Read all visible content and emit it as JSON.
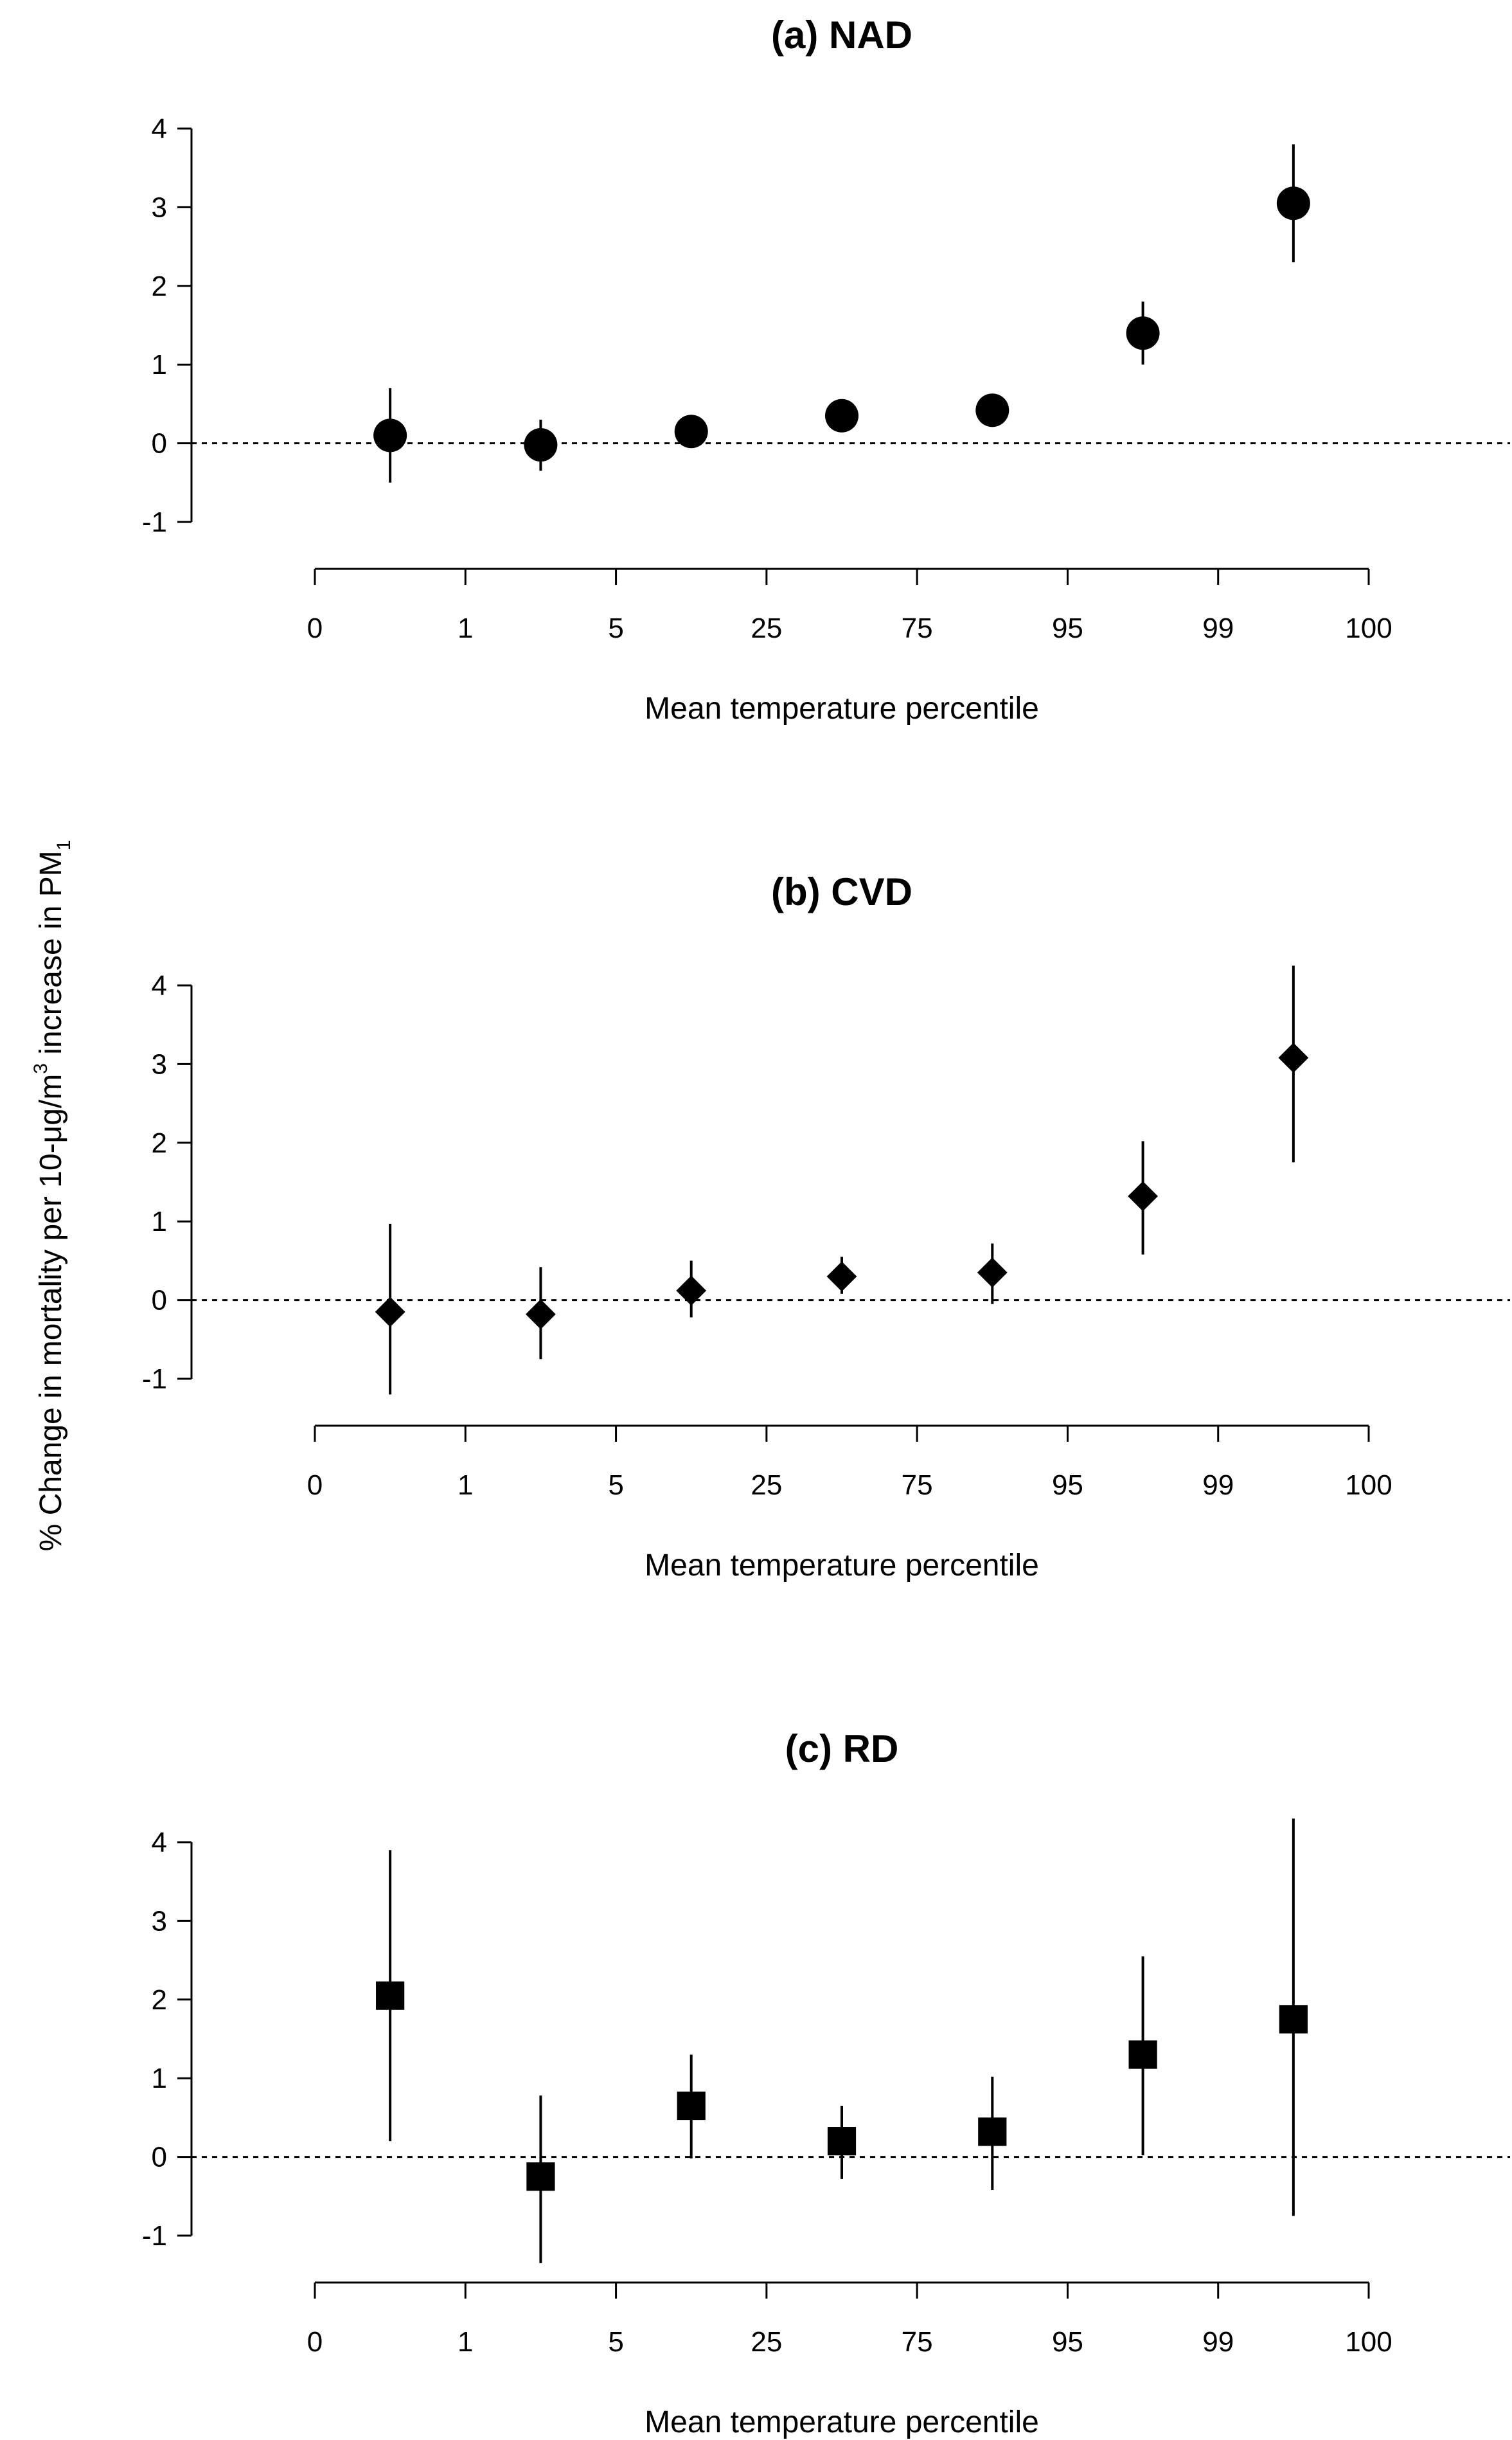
{
  "figure": {
    "y_axis_label_parts": [
      "% Change in mortality per 10-μg/m",
      "3",
      " increase in  PM",
      "1"
    ]
  },
  "chart_data": [
    {
      "type": "scatter",
      "title": "(a) NAD",
      "marker": "circle",
      "xlabel": "Mean temperature percentile",
      "x_ticks": [
        "0",
        "1",
        "5",
        "25",
        "75",
        "95",
        "99",
        "100"
      ],
      "y_ticks": [
        -1,
        0,
        1,
        2,
        3,
        4
      ],
      "ylim": [
        -1,
        4
      ],
      "reference_line": 0,
      "categories": [
        "0-1",
        "1-5",
        "5-25",
        "25-75",
        "75-95",
        "95-99",
        "99-100"
      ],
      "values": [
        0.1,
        -0.02,
        0.15,
        0.35,
        0.42,
        1.4,
        3.05
      ],
      "ci_lower": [
        -0.5,
        -0.35,
        0.0,
        0.2,
        0.25,
        1.0,
        2.3
      ],
      "ci_upper": [
        0.7,
        0.3,
        0.3,
        0.5,
        0.6,
        1.8,
        3.8
      ]
    },
    {
      "type": "scatter",
      "title": "(b) CVD",
      "marker": "diamond",
      "xlabel": "Mean temperature percentile",
      "x_ticks": [
        "0",
        "1",
        "5",
        "25",
        "75",
        "95",
        "99",
        "100"
      ],
      "y_ticks": [
        -1,
        0,
        1,
        2,
        3,
        4
      ],
      "ylim": [
        -1,
        4
      ],
      "reference_line": 0,
      "categories": [
        "0-1",
        "1-5",
        "5-25",
        "25-75",
        "75-95",
        "95-99",
        "99-100"
      ],
      "values": [
        -0.15,
        -0.18,
        0.12,
        0.3,
        0.35,
        1.32,
        3.08
      ],
      "ci_lower": [
        -1.2,
        -0.75,
        -0.22,
        0.08,
        -0.05,
        0.58,
        1.75
      ],
      "ci_upper": [
        0.97,
        0.42,
        0.5,
        0.55,
        0.72,
        2.02,
        4.25
      ]
    },
    {
      "type": "scatter",
      "title": "(c) RD",
      "marker": "square",
      "xlabel": "Mean temperature percentile",
      "x_ticks": [
        "0",
        "1",
        "5",
        "25",
        "75",
        "95",
        "99",
        "100"
      ],
      "y_ticks": [
        -1,
        0,
        1,
        2,
        3,
        4
      ],
      "ylim": [
        -1,
        4
      ],
      "reference_line": 0,
      "categories": [
        "0-1",
        "1-5",
        "5-25",
        "25-75",
        "75-95",
        "95-99",
        "99-100"
      ],
      "values": [
        2.05,
        -0.25,
        0.65,
        0.2,
        0.32,
        1.3,
        1.75
      ],
      "ci_lower": [
        0.2,
        -1.35,
        -0.02,
        -0.28,
        -0.42,
        0.02,
        -0.75
      ],
      "ci_upper": [
        3.9,
        0.78,
        1.3,
        0.65,
        1.02,
        2.55,
        4.3
      ]
    }
  ]
}
